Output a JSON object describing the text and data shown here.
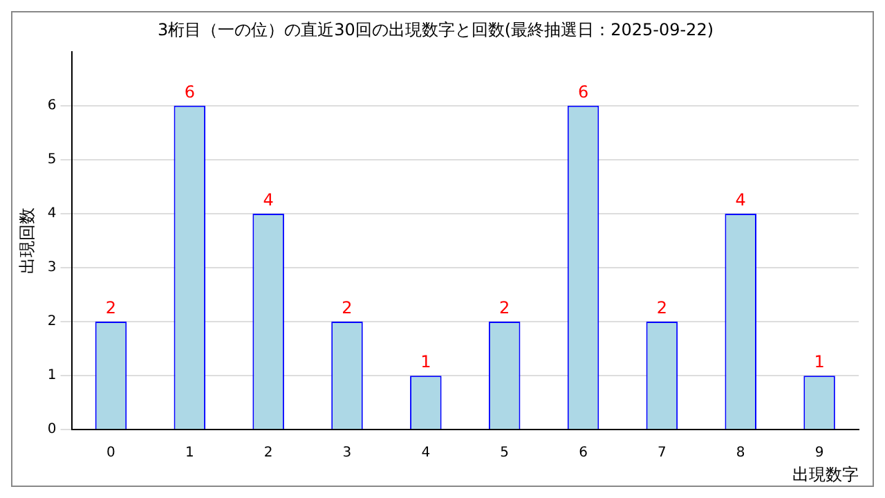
{
  "chart_data": {
    "type": "bar",
    "title": "3桁目（一の位）の直近30回の出現数字と回数(最終抽選日：2025-09-22)",
    "xlabel": "出現数字",
    "ylabel": "出現回数",
    "categories": [
      "0",
      "1",
      "2",
      "3",
      "4",
      "5",
      "6",
      "7",
      "8",
      "9"
    ],
    "values": [
      2,
      6,
      4,
      2,
      1,
      2,
      6,
      2,
      4,
      1
    ],
    "color": "#add8e6",
    "ylim": [
      0,
      7
    ],
    "yticks": [
      0,
      1,
      2,
      3,
      4,
      5,
      6
    ],
    "grid": "y",
    "data_labels": true,
    "legend": false
  }
}
